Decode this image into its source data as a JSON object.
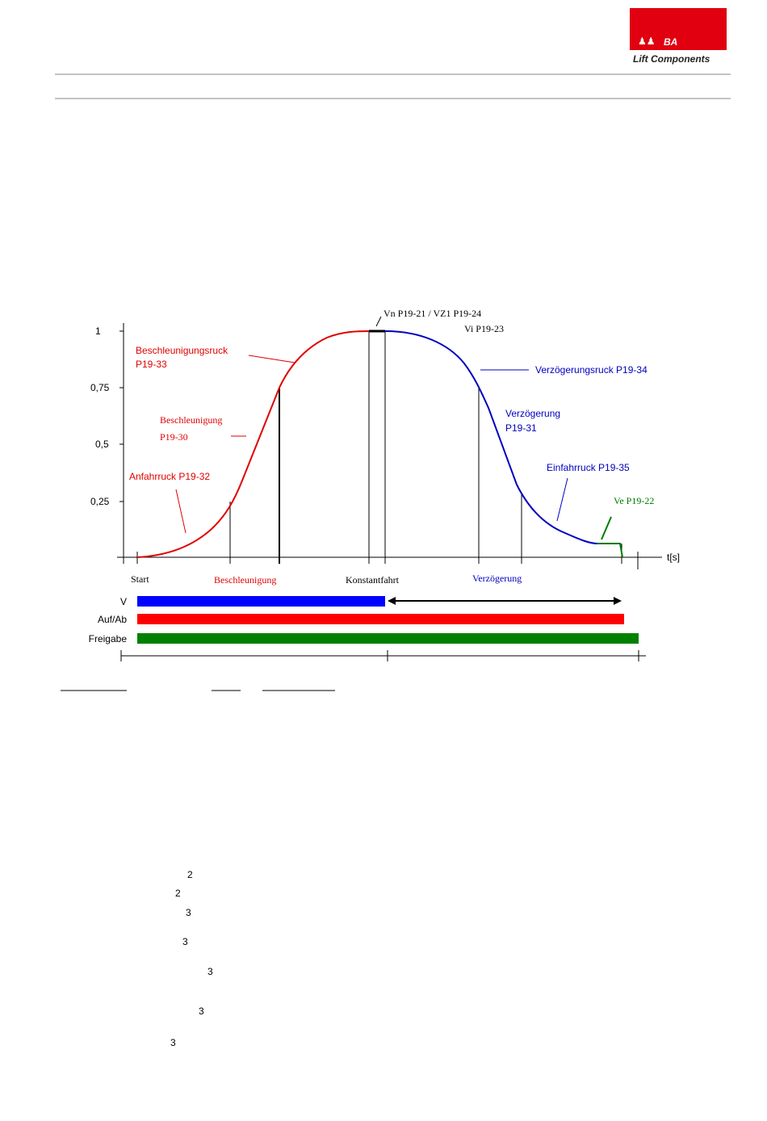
{
  "header": {
    "logo_mark": "BA",
    "logo_caption": "Lift Components"
  },
  "diagram": {
    "y_axis_labels": [
      "1",
      "0,75",
      "0,5",
      "0,25"
    ],
    "x_axis_label": "t[s]",
    "phases": [
      "Start",
      "Beschleunigung",
      "Konstantfahrt",
      "Verzögerung"
    ],
    "annotations": {
      "vn": "Vn  P19-21   / VZ1 P19-24",
      "vi": "Vi   P19-23",
      "beschleunigungsruck": "Beschleunigungsruck",
      "beschleunigungsruck_param": "P19-33",
      "beschleunigung": "Beschleunigung",
      "beschleunigung_param": "P19-30",
      "anfahrruck": "Anfahrruck P19-32",
      "verzoegerungsruck": "Verzögerungsruck P19-34",
      "verzoegerung": "Verzögerung",
      "verzoegerung_param": "P19-31",
      "einfahrruck": "Einfahrruck P19-35",
      "ve": "Ve P19-22"
    },
    "signals": [
      "V",
      "Auf/Ab",
      "Freigabe"
    ]
  },
  "footnote_marks": [
    "2",
    "2",
    "3",
    "3",
    "3",
    "3",
    "3"
  ]
}
